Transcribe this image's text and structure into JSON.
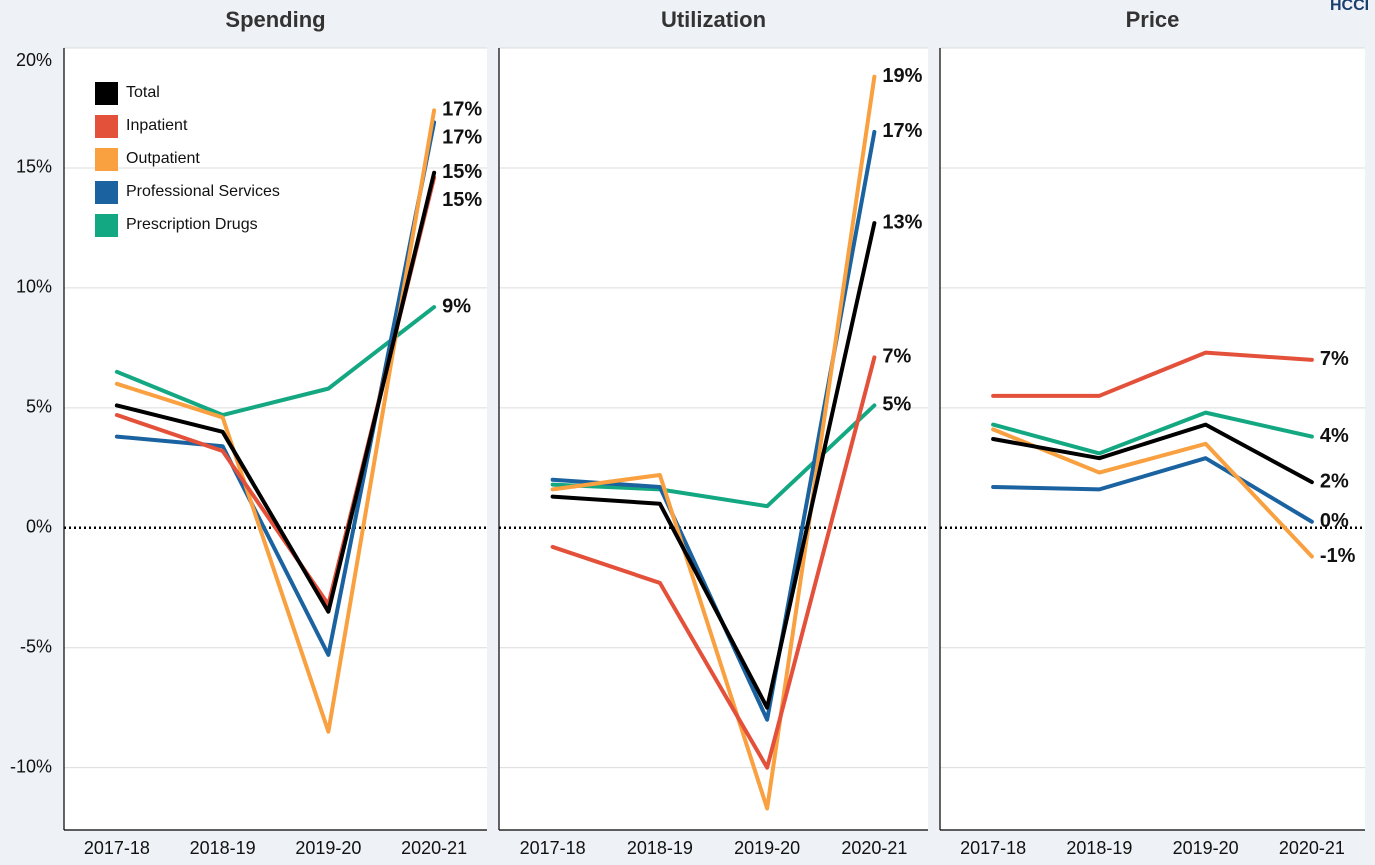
{
  "logo": "HCCI",
  "chart_data": [
    {
      "type": "line",
      "title": "Spending",
      "legend": "upper left",
      "zero_line": true,
      "grid": true,
      "categories": [
        "2017-18",
        "2018-19",
        "2019-20",
        "2020-21"
      ],
      "ylim": [
        -12.6,
        20
      ],
      "yticks": [
        {
          "value": -10,
          "label": "-10%"
        },
        {
          "value": -5,
          "label": "-5%"
        },
        {
          "value": 0,
          "label": "0%"
        },
        {
          "value": 5,
          "label": "5%"
        },
        {
          "value": 10,
          "label": "10%"
        },
        {
          "value": 15,
          "label": "15%"
        },
        {
          "value": 20,
          "label": "20%"
        }
      ],
      "series": [
        {
          "name": "Total",
          "color": "#000000",
          "values": [
            5.1,
            4.0,
            -3.5,
            14.8
          ],
          "value_labels": [
            null,
            null,
            null,
            "15%"
          ]
        },
        {
          "name": "Inpatient",
          "color": "#e4513b",
          "values": [
            4.7,
            3.2,
            -3.2,
            14.6
          ],
          "value_labels": [
            null,
            null,
            null,
            "15%"
          ]
        },
        {
          "name": "Outpatient",
          "color": "#f9a040",
          "values": [
            6.0,
            4.6,
            -8.5,
            17.4
          ],
          "value_labels": [
            null,
            null,
            null,
            "17%"
          ]
        },
        {
          "name": "Professional Services",
          "color": "#1a63a0",
          "values": [
            3.8,
            3.4,
            -5.3,
            16.9
          ],
          "value_labels": [
            null,
            null,
            null,
            "17%"
          ]
        },
        {
          "name": "Prescription Drugs",
          "color": "#14a882",
          "values": [
            6.5,
            4.7,
            5.8,
            9.2
          ],
          "value_labels": [
            null,
            null,
            null,
            "9%"
          ]
        }
      ]
    },
    {
      "type": "line",
      "title": "Utilization",
      "zero_line": true,
      "grid": true,
      "categories": [
        "2017-18",
        "2018-19",
        "2019-20",
        "2020-21"
      ],
      "ylim": [
        -12.6,
        20
      ],
      "series": [
        {
          "color": "#000000",
          "values": [
            1.3,
            1.0,
            -7.5,
            12.7
          ],
          "value_labels": [
            null,
            null,
            null,
            "13%"
          ]
        },
        {
          "color": "#e4513b",
          "values": [
            -0.8,
            -2.3,
            -10.0,
            7.1
          ],
          "value_labels": [
            null,
            null,
            null,
            "7%"
          ]
        },
        {
          "color": "#f9a040",
          "values": [
            1.6,
            2.2,
            -11.7,
            18.8
          ],
          "value_labels": [
            null,
            null,
            null,
            "19%"
          ]
        },
        {
          "color": "#1a63a0",
          "values": [
            2.0,
            1.7,
            -8.0,
            16.5
          ],
          "value_labels": [
            null,
            null,
            null,
            "17%"
          ]
        },
        {
          "color": "#14a882",
          "values": [
            1.8,
            1.6,
            0.9,
            5.1
          ],
          "value_labels": [
            null,
            null,
            null,
            "5%"
          ]
        }
      ]
    },
    {
      "type": "line",
      "title": "Price",
      "zero_line": true,
      "grid": true,
      "categories": [
        "2017-18",
        "2018-19",
        "2019-20",
        "2020-21"
      ],
      "ylim": [
        -12.6,
        20
      ],
      "series": [
        {
          "color": "#000000",
          "values": [
            3.7,
            2.9,
            4.3,
            1.9
          ],
          "value_labels": [
            null,
            null,
            null,
            "2%"
          ]
        },
        {
          "color": "#e4513b",
          "values": [
            5.5,
            5.5,
            7.3,
            7.0
          ],
          "value_labels": [
            null,
            null,
            null,
            "7%"
          ]
        },
        {
          "color": "#f9a040",
          "values": [
            4.1,
            2.3,
            3.5,
            -1.2
          ],
          "value_labels": [
            null,
            null,
            null,
            "-1%"
          ]
        },
        {
          "color": "#1a63a0",
          "values": [
            1.7,
            1.6,
            2.9,
            0.25
          ],
          "value_labels": [
            null,
            null,
            null,
            "0%"
          ]
        },
        {
          "color": "#14a882",
          "values": [
            4.3,
            3.1,
            4.8,
            3.8
          ],
          "value_labels": [
            null,
            null,
            null,
            "4%"
          ]
        }
      ]
    }
  ]
}
